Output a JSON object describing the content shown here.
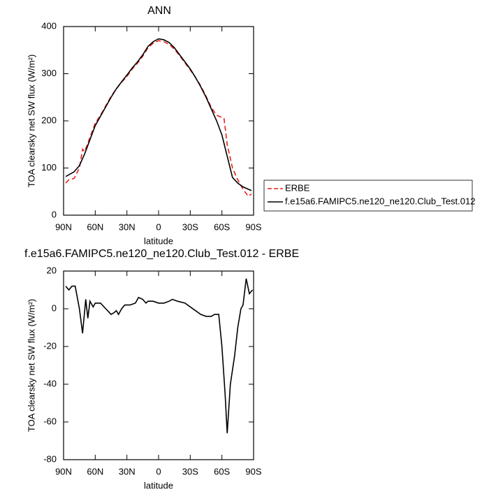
{
  "chart_data": [
    {
      "type": "line",
      "title": "ANN",
      "x_label": "latitude",
      "y_label": "TOA clearsky net SW flux (W/m²)",
      "xlim": [
        90,
        -90
      ],
      "ylim": [
        0,
        400
      ],
      "xticks": [
        {
          "value": 90,
          "label": "90N"
        },
        {
          "value": 60,
          "label": "60N"
        },
        {
          "value": 30,
          "label": "30N"
        },
        0,
        {
          "value": -30,
          "label": "30S"
        },
        {
          "value": -60,
          "label": "60S"
        },
        {
          "value": -90,
          "label": "90S"
        }
      ],
      "yticks": [
        0,
        100,
        200,
        300,
        400
      ],
      "legend": "right",
      "series": [
        {
          "name": "ERBE",
          "color": "#e8201a",
          "line_style": "dashed",
          "x": [
            88,
            85,
            80,
            75,
            72,
            70,
            65,
            60,
            55,
            50,
            45,
            40,
            35,
            30,
            25,
            20,
            15,
            10,
            5,
            0,
            -5,
            -10,
            -15,
            -20,
            -25,
            -30,
            -35,
            -40,
            -45,
            -50,
            -55,
            -60,
            -62,
            -65,
            -70,
            -75,
            -80,
            -85,
            -88
          ],
          "values": [
            68,
            75,
            78,
            100,
            140,
            135,
            165,
            195,
            212,
            232,
            252,
            268,
            282,
            294,
            310,
            322,
            337,
            355,
            365,
            370,
            368,
            362,
            352,
            338,
            323,
            308,
            292,
            274,
            252,
            228,
            212,
            207,
            205,
            150,
            100,
            75,
            55,
            40,
            45
          ]
        },
        {
          "name": "f.e15a6.FAMIPC5.ne120_ne120.Club_Test.012",
          "color": "#000000",
          "line_style": "solid",
          "x": [
            88,
            80,
            75,
            70,
            65,
            60,
            55,
            50,
            45,
            40,
            35,
            30,
            25,
            20,
            15,
            10,
            5,
            0,
            -5,
            -10,
            -15,
            -20,
            -25,
            -30,
            -35,
            -40,
            -45,
            -50,
            -55,
            -60,
            -65,
            -70,
            -75,
            -80,
            -85,
            -88
          ],
          "values": [
            82,
            92,
            105,
            130,
            160,
            190,
            210,
            230,
            250,
            268,
            283,
            297,
            312,
            325,
            340,
            358,
            368,
            374,
            372,
            366,
            355,
            340,
            325,
            310,
            292,
            272,
            250,
            225,
            200,
            170,
            125,
            80,
            68,
            60,
            55,
            52
          ]
        }
      ]
    },
    {
      "type": "line",
      "title": "f.e15a6.FAMIPC5.ne120_ne120.Club_Test.012 - ERBE",
      "x_label": "latitude",
      "y_label": "TOA clearsky net SW flux (W/m²)",
      "xlim": [
        90,
        -90
      ],
      "ylim": [
        -80,
        20
      ],
      "xticks": [
        {
          "value": 90,
          "label": "90N"
        },
        {
          "value": 60,
          "label": "60N"
        },
        {
          "value": 30,
          "label": "30N"
        },
        0,
        {
          "value": -30,
          "label": "30S"
        },
        {
          "value": -60,
          "label": "60S"
        },
        {
          "value": -90,
          "label": "90S"
        }
      ],
      "yticks": [
        20,
        0,
        -20,
        -40,
        -60,
        -80
      ],
      "color": "#000000",
      "x": [
        88,
        85,
        82,
        79,
        75,
        72,
        69,
        67,
        65,
        62,
        60,
        55,
        50,
        45,
        42,
        40,
        38,
        35,
        32,
        27,
        22,
        19,
        15,
        12,
        10,
        5,
        0,
        -5,
        -10,
        -13,
        -18,
        -25,
        -30,
        -35,
        -40,
        -45,
        -50,
        -53,
        -57,
        -60,
        -63,
        -65,
        -68,
        -72,
        -75,
        -78,
        -80,
        -83,
        -86,
        -89
      ],
      "values": [
        12,
        10,
        12,
        12,
        0,
        -13,
        5,
        -5,
        4,
        1,
        3,
        3,
        0,
        -3,
        -2,
        -1,
        -3,
        0,
        2,
        2,
        3,
        6,
        5,
        3,
        4,
        4,
        3,
        3,
        4,
        5,
        4,
        3,
        1,
        -1,
        -3,
        -4,
        -4,
        -3,
        -3,
        -20,
        -45,
        -66,
        -40,
        -25,
        -10,
        0,
        2,
        16,
        8,
        10
      ]
    }
  ]
}
